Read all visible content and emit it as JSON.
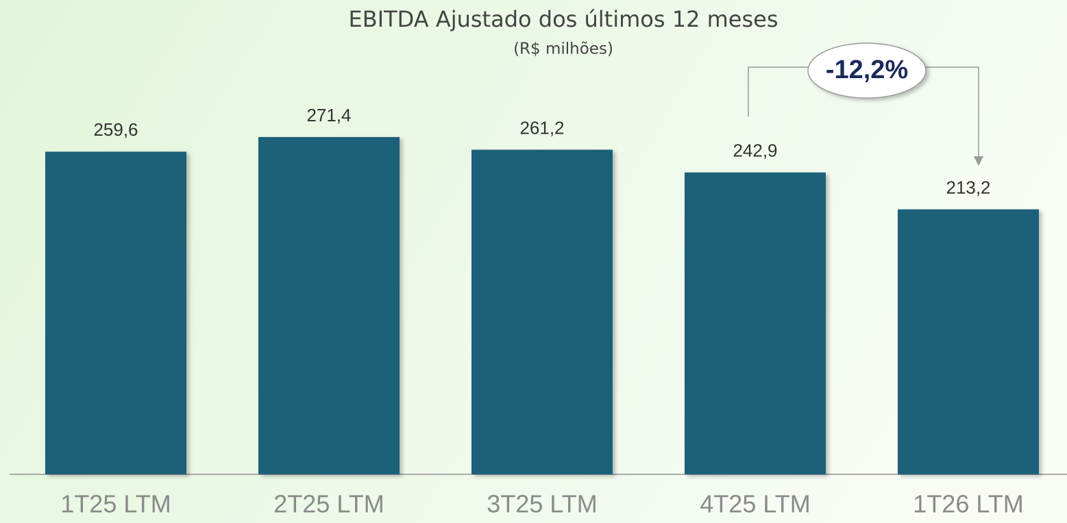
{
  "chart_data": {
    "type": "bar",
    "title": "EBITDA Ajustado dos últimos 12 meses",
    "subtitle": "(R$ milhões)",
    "categories": [
      "1T25 LTM",
      "2T25 LTM",
      "3T25 LTM",
      "4T25 LTM",
      "1T26 LTM"
    ],
    "values": [
      259.6,
      271.4,
      261.2,
      242.9,
      213.2
    ],
    "value_labels": [
      "259,6",
      "271,4",
      "261,2",
      "242,9",
      "213,2"
    ],
    "color": "#1f6079",
    "ylim": [
      0,
      380
    ],
    "annotation": "-12,2%"
  }
}
